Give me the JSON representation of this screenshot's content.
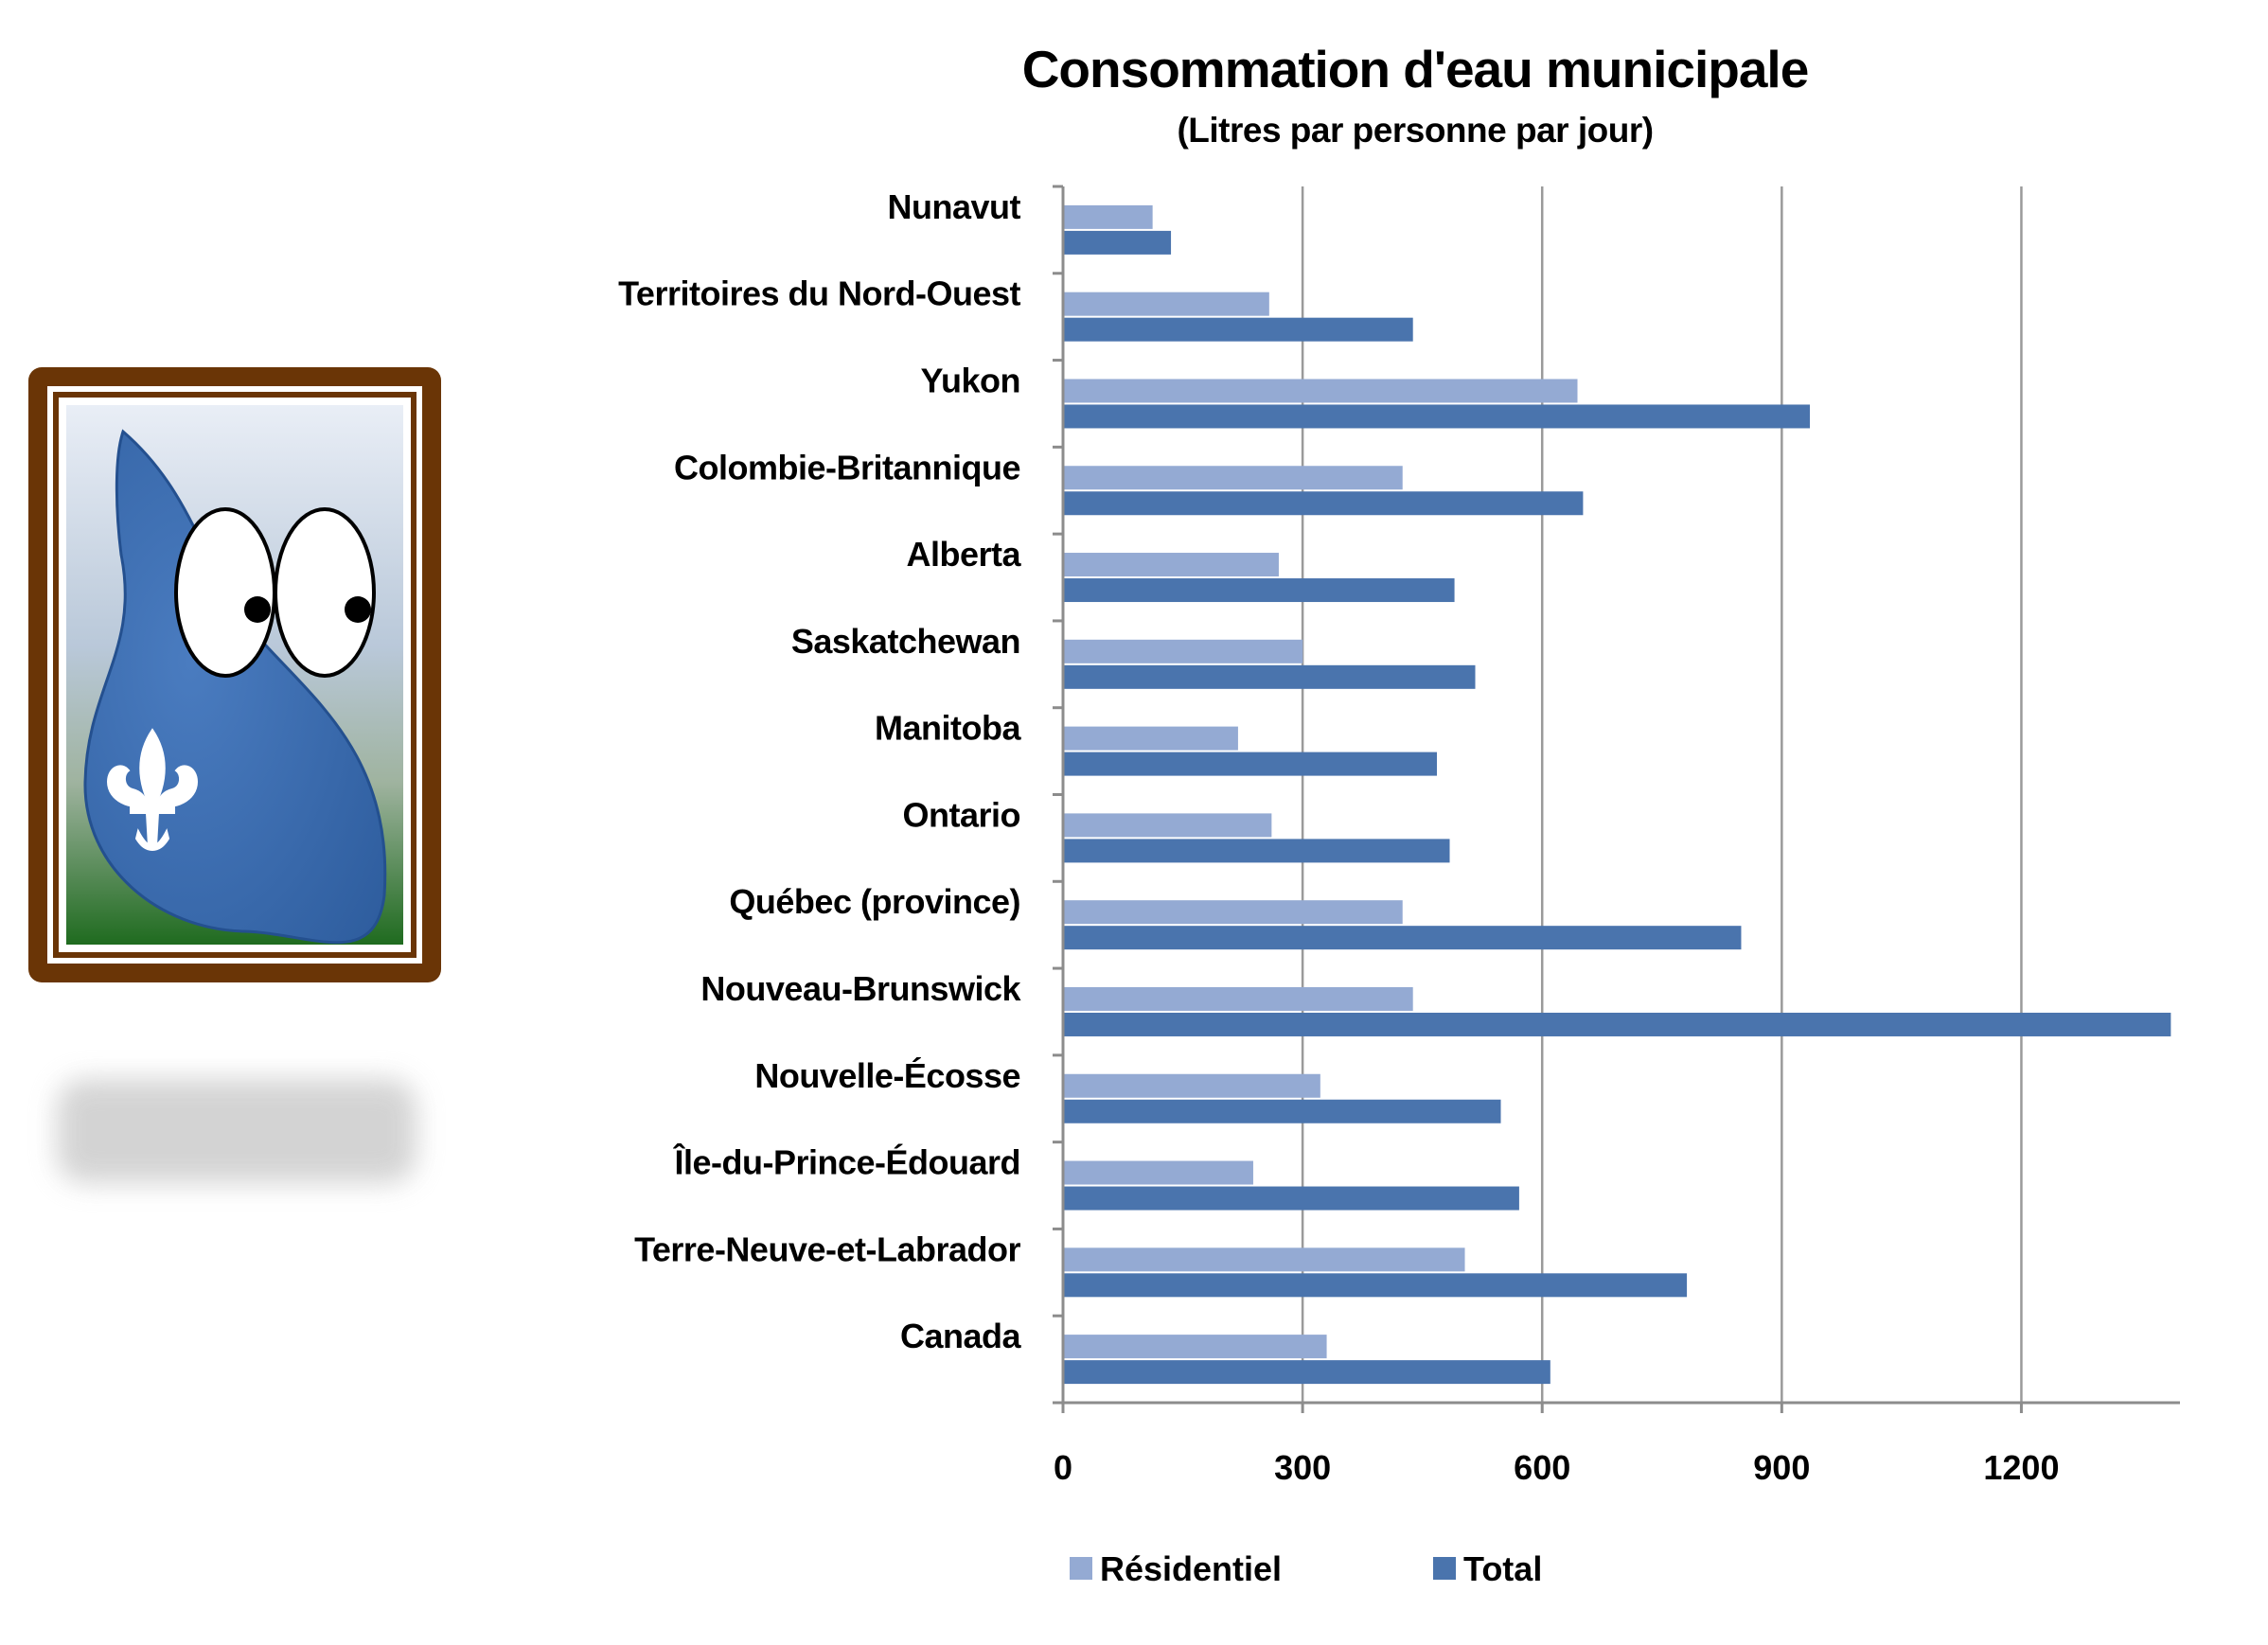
{
  "colors": {
    "residential": "#94aad3",
    "total": "#4a74ad",
    "grid": "#9a9a9a",
    "axis": "#8c8c8c",
    "frame_outer": "#6a3506",
    "drop_body": "#3d6fb4",
    "fleur": "#ffffff"
  },
  "icons": {
    "mascot": "water-drop-mascot-icon",
    "fleur_de_lis": "fleur-de-lis-icon"
  },
  "chart_data": {
    "type": "bar",
    "orientation": "horizontal",
    "title": "Consommation d'eau municipale",
    "subtitle": "(Litres par personne par jour)",
    "xlabel": "",
    "ylabel": "",
    "categories": [
      "Nunavut",
      "Territoires du Nord-Ouest",
      "Yukon",
      "Colombie-Britannique",
      "Alberta",
      "Saskatchewan",
      "Manitoba",
      "Ontario",
      "Québec (province)",
      "Nouveau-Brunswick",
      "Nouvelle-Écosse",
      "Île-du-Prince-Édouard",
      "Terre-Neuve-et-Labrador",
      "Canada"
    ],
    "series": [
      {
        "name": "Résidentiel",
        "color": "#94aad3",
        "values": [
          111,
          257,
          643,
          424,
          269,
          299,
          218,
          260,
          424,
          437,
          321,
          237,
          502,
          329
        ]
      },
      {
        "name": "Total",
        "color": "#4a74ad",
        "values": [
          134,
          437,
          934,
          650,
          489,
          515,
          467,
          483,
          848,
          1386,
          547,
          570,
          780,
          609
        ]
      }
    ],
    "xlim": [
      0,
      1400
    ],
    "xticks": [
      "0",
      "300",
      "600",
      "900",
      "1200"
    ],
    "xtick_values": [
      0,
      300,
      600,
      900,
      1200
    ],
    "grid": true,
    "legend": "bottom"
  }
}
